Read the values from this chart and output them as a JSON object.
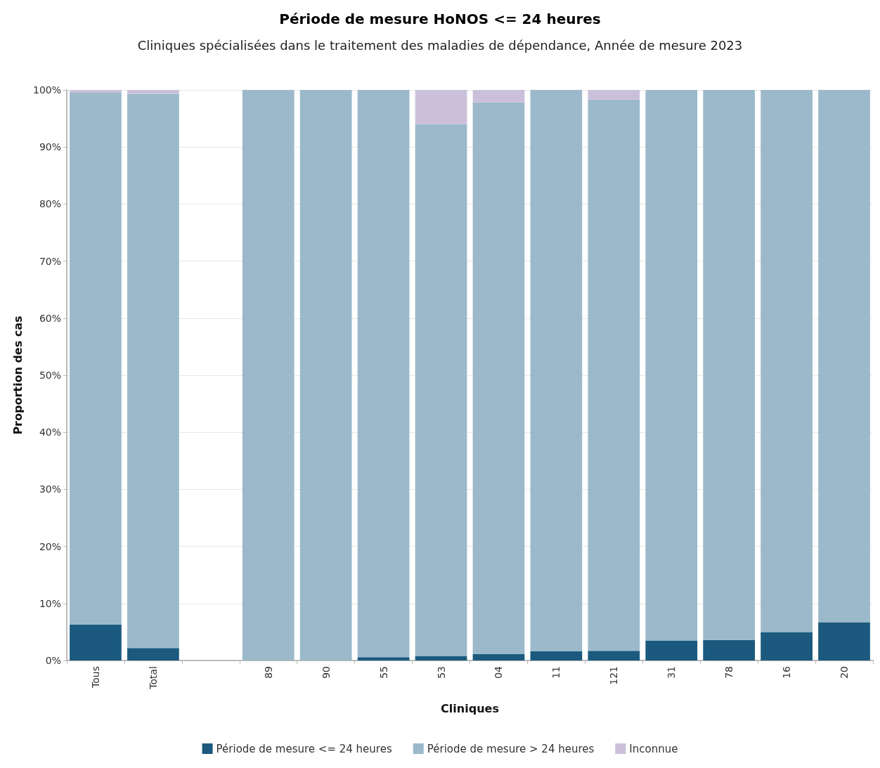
{
  "chart_data": {
    "type": "bar",
    "title": "Période de mesure HoNOS <= 24 heures",
    "subtitle": "Cliniques spécialisées dans le traitement des maladies de dépendance, Année de mesure 2023",
    "xlabel": "Cliniques",
    "ylabel": "Proportion des cas",
    "categories": [
      "Tous",
      "Total",
      null,
      "89",
      "90",
      "55",
      "53",
      "04",
      "11",
      "121",
      "31",
      "78",
      "16",
      "20"
    ],
    "stacked": true,
    "series": [
      {
        "name": "Période de mesure <= 24 heures",
        "color": "#1b5a7e",
        "values": [
          6.3,
          2.2,
          null,
          0,
          0,
          0.6,
          0.8,
          1.1,
          1.6,
          1.7,
          3.5,
          3.6,
          5.0,
          6.7
        ]
      },
      {
        "name": "Période de mesure > 24 heures",
        "color": "#9bb9ca",
        "values": [
          93.2,
          97.1,
          null,
          100,
          100,
          99.4,
          93.2,
          96.7,
          98.4,
          96.6,
          96.5,
          96.4,
          95.0,
          93.3
        ]
      },
      {
        "name": "Inconnue",
        "color": "#cac0da",
        "values": [
          0.5,
          0.7,
          null,
          0,
          0,
          0,
          6.0,
          2.2,
          0,
          1.7,
          0,
          0,
          0,
          0
        ]
      }
    ],
    "ylim": [
      0,
      100
    ],
    "yticks": [
      {
        "value": 0,
        "label": "0%"
      },
      {
        "value": 10,
        "label": "10%"
      },
      {
        "value": 20,
        "label": "20%"
      },
      {
        "value": 30,
        "label": "30%"
      },
      {
        "value": 40,
        "label": "40%"
      },
      {
        "value": 50,
        "label": "50%"
      },
      {
        "value": 60,
        "label": "60%"
      },
      {
        "value": 70,
        "label": "70%"
      },
      {
        "value": 80,
        "label": "80%"
      },
      {
        "value": 90,
        "label": "90%"
      },
      {
        "value": 100,
        "label": "100%"
      }
    ],
    "grid": "y",
    "legend": "bottom"
  }
}
